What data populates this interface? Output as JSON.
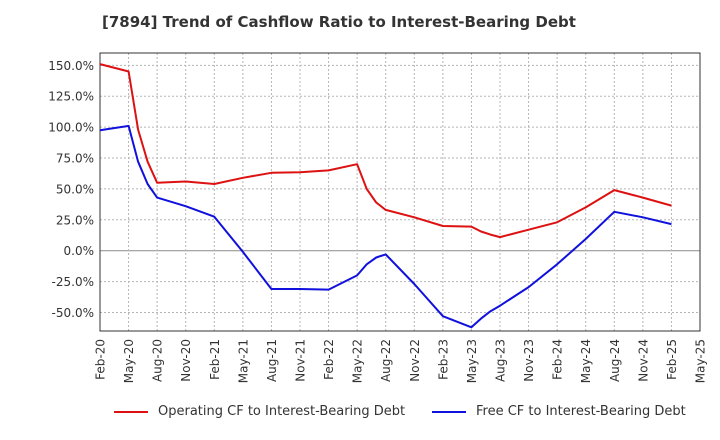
{
  "chart_data": {
    "type": "line",
    "title": "[7894]  Trend of Cashflow Ratio to Interest-Bearing Debt",
    "xlabel": "",
    "ylabel": "",
    "ylim": [
      -65,
      160
    ],
    "y_ticks": [
      150,
      125,
      100,
      75,
      50,
      25,
      0,
      -25,
      -50
    ],
    "y_tick_labels": [
      "150.0%",
      "125.0%",
      "100.0%",
      "75.0%",
      "50.0%",
      "25.0%",
      "0.0%",
      "-25.0%",
      "-50.0%"
    ],
    "x_tick_labels": [
      "Feb-20",
      "May-20",
      "Aug-20",
      "Nov-20",
      "Feb-21",
      "May-21",
      "Aug-21",
      "Nov-21",
      "Feb-22",
      "May-22",
      "Aug-22",
      "Nov-22",
      "Feb-23",
      "May-23",
      "Aug-23",
      "Nov-23",
      "Feb-24",
      "May-24",
      "Aug-24",
      "Nov-24",
      "Feb-25",
      "May-25"
    ],
    "grid": true,
    "legend_position": "bottom",
    "series": [
      {
        "name": "Operating CF to Interest-Bearing Debt",
        "color": "#dd1111",
        "points": [
          [
            "Feb-20",
            151
          ],
          [
            "May-20",
            145
          ],
          [
            "Jun-20",
            98
          ],
          [
            "Jul-20",
            72
          ],
          [
            "Aug-20",
            55
          ],
          [
            "Nov-20",
            56
          ],
          [
            "Feb-21",
            54
          ],
          [
            "May-21",
            59
          ],
          [
            "Aug-21",
            63
          ],
          [
            "Nov-21",
            63.5
          ],
          [
            "Feb-22",
            65
          ],
          [
            "May-22",
            70
          ],
          [
            "Jun-22",
            50
          ],
          [
            "Jul-22",
            39
          ],
          [
            "Aug-22",
            33
          ],
          [
            "Nov-22",
            27
          ],
          [
            "Feb-23",
            20
          ],
          [
            "May-23",
            19.5
          ],
          [
            "Jun-23",
            15.5
          ],
          [
            "Jul-23",
            13
          ],
          [
            "Aug-23",
            11
          ],
          [
            "Nov-23",
            17
          ],
          [
            "Feb-24",
            23
          ],
          [
            "May-24",
            35
          ],
          [
            "Aug-24",
            49
          ],
          [
            "Nov-24",
            43
          ],
          [
            "Feb-25",
            36.5
          ]
        ]
      },
      {
        "name": "Free CF to Interest-Bearing Debt",
        "color": "#1111dd",
        "points": [
          [
            "Feb-20",
            97.5
          ],
          [
            "May-20",
            101
          ],
          [
            "Jun-20",
            72
          ],
          [
            "Jul-20",
            54
          ],
          [
            "Aug-20",
            43
          ],
          [
            "Nov-20",
            36
          ],
          [
            "Feb-21",
            27.5
          ],
          [
            "May-21",
            -1
          ],
          [
            "Aug-21",
            -31
          ],
          [
            "Nov-21",
            -31
          ],
          [
            "Feb-22",
            -31.5
          ],
          [
            "May-22",
            -20
          ],
          [
            "Jun-22",
            -11
          ],
          [
            "Jul-22",
            -5.5
          ],
          [
            "Aug-22",
            -3
          ],
          [
            "Nov-22",
            -27
          ],
          [
            "Feb-23",
            -53
          ],
          [
            "May-23",
            -62
          ],
          [
            "Jun-23",
            -55
          ],
          [
            "Jul-23",
            -49
          ],
          [
            "Aug-23",
            -44.5
          ],
          [
            "Nov-23",
            -29.5
          ],
          [
            "Feb-24",
            -11
          ],
          [
            "May-24",
            9.5
          ],
          [
            "Aug-24",
            31.5
          ],
          [
            "Nov-24",
            27
          ],
          [
            "Feb-25",
            21.5
          ]
        ]
      }
    ]
  }
}
